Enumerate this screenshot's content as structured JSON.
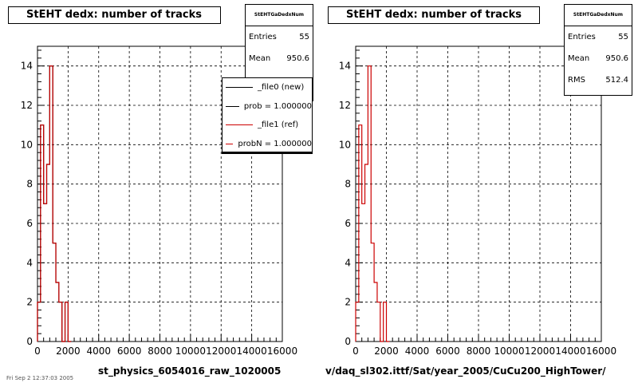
{
  "chart_data": [
    {
      "type": "step",
      "title": "StEHT dedx: number of tracks",
      "xlabel": "st_physics_6054016_raw_1020005",
      "xlim": [
        0,
        16000
      ],
      "ylim": [
        0,
        15
      ],
      "x_ticks": [
        "0",
        "2000",
        "4000",
        "6000",
        "8000",
        "10000",
        "12000",
        "14000",
        "16000"
      ],
      "y_ticks": [
        "0",
        "2",
        "4",
        "6",
        "8",
        "10",
        "12",
        "14"
      ],
      "grid": true,
      "bin_width": 200,
      "stats": {
        "header": "StEHTGaDedxNum",
        "rows": [
          {
            "label": "Entries",
            "value": "55"
          },
          {
            "label": "Mean",
            "value": "950.6"
          }
        ]
      },
      "legend": {
        "placement": "top-right",
        "entries": [
          {
            "label": "_file0 (new)",
            "color": "#000000"
          },
          {
            "label": "prob = 1.000000",
            "color": "#000000"
          },
          {
            "label": "_file1 (ref)",
            "color": "#cc0000"
          },
          {
            "label": "probN = 1.000000",
            "color": "#cc0000"
          }
        ]
      },
      "series": [
        {
          "color": "#000000",
          "values": [
            2,
            11,
            7,
            9,
            14,
            5,
            3,
            2,
            0,
            2,
            0
          ]
        },
        {
          "color": "#cc0000",
          "values": [
            2,
            11,
            7,
            9,
            14,
            5,
            3,
            2,
            0,
            2,
            0
          ]
        }
      ]
    },
    {
      "type": "step",
      "title": "StEHT dedx: number of tracks",
      "xlabel": "v/daq_sl302.ittf/Sat/year_2005/CuCu200_HighTower/",
      "xlim": [
        0,
        16000
      ],
      "ylim": [
        0,
        15
      ],
      "x_ticks": [
        "0",
        "2000",
        "4000",
        "6000",
        "8000",
        "10000",
        "12000",
        "14000",
        "16000"
      ],
      "y_ticks": [
        "0",
        "2",
        "4",
        "6",
        "8",
        "10",
        "12",
        "14"
      ],
      "grid": true,
      "bin_width": 200,
      "stats": {
        "header": "StEHTGaDedxNum",
        "rows": [
          {
            "label": "Entries",
            "value": "55"
          },
          {
            "label": "Mean",
            "value": "950.6"
          },
          {
            "label": "RMS",
            "value": "512.4"
          }
        ]
      },
      "series": [
        {
          "color": "#cc0000",
          "values": [
            2,
            11,
            7,
            9,
            14,
            5,
            3,
            2,
            0,
            2,
            0
          ]
        }
      ]
    }
  ],
  "footer": "Fri Sep  2 12:37:03 2005"
}
